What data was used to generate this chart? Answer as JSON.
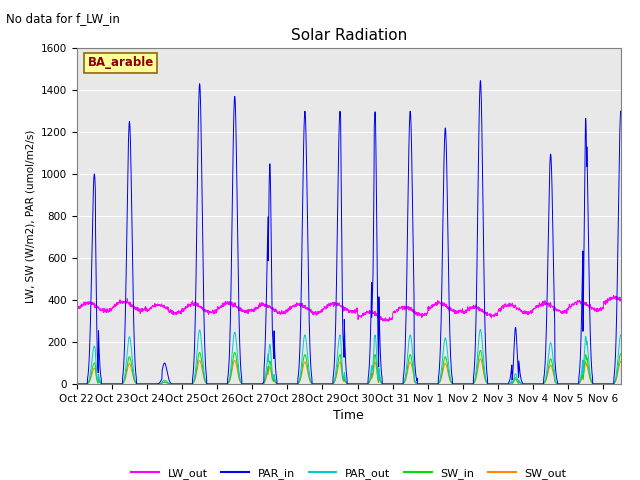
{
  "title": "Solar Radiation",
  "note": "No data for f_LW_in",
  "ylabel": "LW, SW (W/m2), PAR (umol/m2/s)",
  "xlabel": "Time",
  "site_label": "BA_arable",
  "ylim": [
    0,
    1600
  ],
  "yticks": [
    0,
    200,
    400,
    600,
    800,
    1000,
    1200,
    1400,
    1600
  ],
  "xtick_labels": [
    "Oct 22",
    "Oct 23",
    "Oct 24",
    "Oct 25",
    "Oct 26",
    "Oct 27",
    "Oct 28",
    "Oct 29",
    "Oct 30",
    "Oct 31",
    "Nov 1",
    "Nov 2",
    "Nov 3",
    "Nov 4",
    "Nov 5",
    "Nov 6"
  ],
  "bg_color": "#e8e8e8",
  "colors": {
    "LW_out": "#ff00ff",
    "PAR_in": "#0000ee",
    "PAR_out": "#00cccc",
    "SW_in": "#00dd00",
    "SW_out": "#ff8800"
  },
  "day_peaks_PAR": [
    1000,
    1250,
    100,
    1430,
    1370,
    1050,
    1300,
    1300,
    1300,
    1300,
    1220,
    1445,
    270,
    1095,
    1265,
    1300
  ],
  "day_peaks_SW": [
    100,
    130,
    10,
    150,
    150,
    110,
    140,
    140,
    140,
    140,
    130,
    160,
    30,
    120,
    140,
    145
  ]
}
